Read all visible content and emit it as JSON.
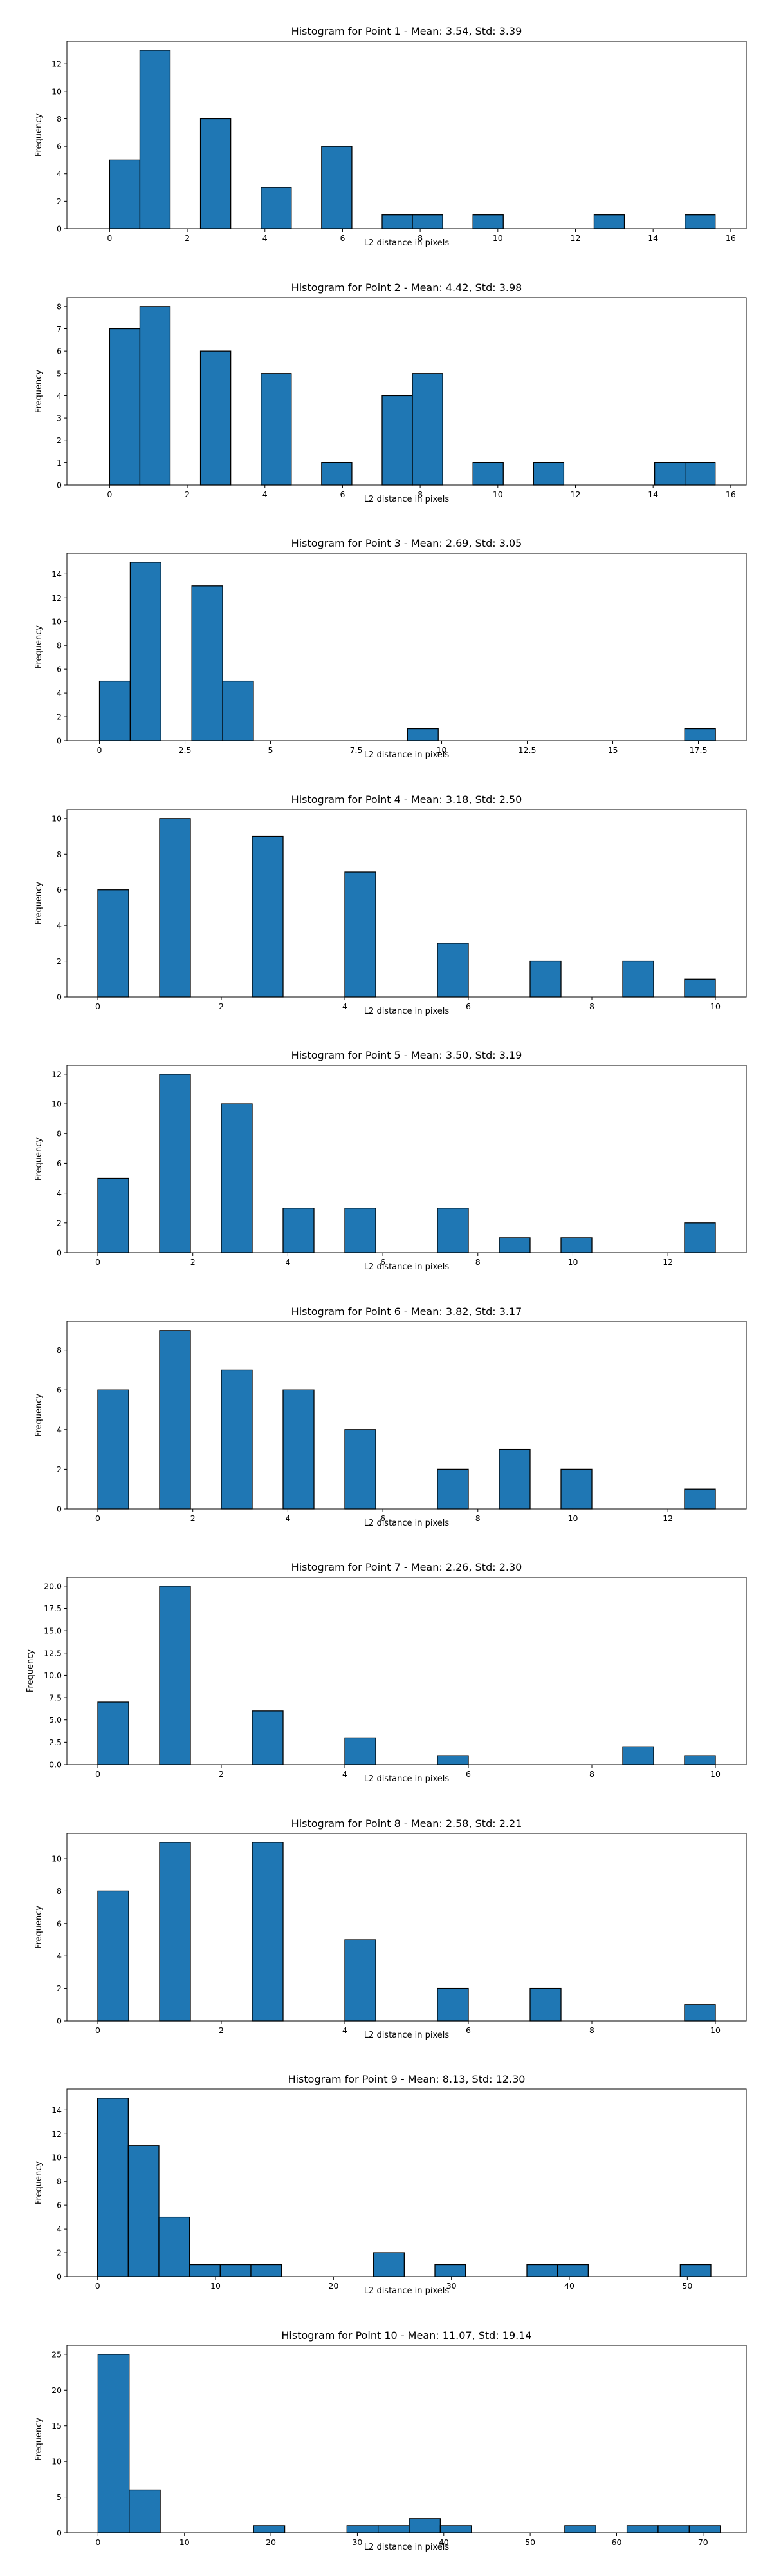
{
  "chart_data": [
    {
      "type": "bar",
      "title": "Histogram for Point 1 - Mean: 3.54, Std: 3.39",
      "xlabel": "L2 distance in pixels",
      "ylabel": "Frequency",
      "xlim": [
        -1.1,
        16.4
      ],
      "ylim": [
        0,
        13.65
      ],
      "xticks": [
        0,
        2,
        4,
        6,
        8,
        10,
        12,
        14,
        16
      ],
      "yticks": [
        0,
        2,
        4,
        6,
        8,
        10,
        12
      ],
      "bins": [
        {
          "x0": 0.0,
          "x1": 0.78,
          "count": 5
        },
        {
          "x0": 0.78,
          "x1": 1.56,
          "count": 13
        },
        {
          "x0": 2.34,
          "x1": 3.12,
          "count": 8
        },
        {
          "x0": 3.9,
          "x1": 4.68,
          "count": 3
        },
        {
          "x0": 5.46,
          "x1": 6.24,
          "count": 6
        },
        {
          "x0": 7.02,
          "x1": 7.8,
          "count": 1
        },
        {
          "x0": 7.8,
          "x1": 8.58,
          "count": 1
        },
        {
          "x0": 9.36,
          "x1": 10.14,
          "count": 1
        },
        {
          "x0": 12.48,
          "x1": 13.26,
          "count": 1
        },
        {
          "x0": 14.82,
          "x1": 15.6,
          "count": 1
        }
      ]
    },
    {
      "type": "bar",
      "title": "Histogram for Point 2 - Mean: 4.42, Std: 3.98",
      "xlabel": "L2 distance in pixels",
      "ylabel": "Frequency",
      "xlim": [
        -1.1,
        16.4
      ],
      "ylim": [
        0,
        8.4
      ],
      "xticks": [
        0,
        2,
        4,
        6,
        8,
        10,
        12,
        14,
        16
      ],
      "yticks": [
        0,
        1,
        2,
        3,
        4,
        5,
        6,
        7,
        8
      ],
      "bins": [
        {
          "x0": 0.0,
          "x1": 0.78,
          "count": 7
        },
        {
          "x0": 0.78,
          "x1": 1.56,
          "count": 8
        },
        {
          "x0": 2.34,
          "x1": 3.12,
          "count": 6
        },
        {
          "x0": 3.9,
          "x1": 4.68,
          "count": 5
        },
        {
          "x0": 5.46,
          "x1": 6.24,
          "count": 1
        },
        {
          "x0": 7.02,
          "x1": 7.8,
          "count": 4
        },
        {
          "x0": 7.8,
          "x1": 8.58,
          "count": 5
        },
        {
          "x0": 9.36,
          "x1": 10.14,
          "count": 1
        },
        {
          "x0": 10.92,
          "x1": 11.7,
          "count": 1
        },
        {
          "x0": 14.04,
          "x1": 14.82,
          "count": 1
        },
        {
          "x0": 14.82,
          "x1": 15.6,
          "count": 1
        }
      ]
    },
    {
      "type": "bar",
      "title": "Histogram for Point 3 - Mean: 2.69, Std: 3.05",
      "xlabel": "L2 distance in pixels",
      "ylabel": "Frequency",
      "xlim": [
        -0.95,
        18.9
      ],
      "ylim": [
        0,
        15.75
      ],
      "xticks": [
        0.0,
        2.5,
        5.0,
        7.5,
        10.0,
        12.5,
        15.0,
        17.5
      ],
      "yticks": [
        0,
        2,
        4,
        6,
        8,
        10,
        12,
        14
      ],
      "bins": [
        {
          "x0": 0.0,
          "x1": 0.9,
          "count": 5
        },
        {
          "x0": 0.9,
          "x1": 1.8,
          "count": 15
        },
        {
          "x0": 2.7,
          "x1": 3.6,
          "count": 13
        },
        {
          "x0": 3.6,
          "x1": 4.5,
          "count": 5
        },
        {
          "x0": 9.0,
          "x1": 9.9,
          "count": 1
        },
        {
          "x0": 17.1,
          "x1": 18.0,
          "count": 1
        }
      ]
    },
    {
      "type": "bar",
      "title": "Histogram for Point 4 - Mean: 3.18, Std: 2.50",
      "xlabel": "L2 distance in pixels",
      "ylabel": "Frequency",
      "xlim": [
        -0.5,
        10.5
      ],
      "ylim": [
        0,
        10.5
      ],
      "xticks": [
        0,
        2,
        4,
        6,
        8,
        10
      ],
      "yticks": [
        0,
        2,
        4,
        6,
        8,
        10
      ],
      "bins": [
        {
          "x0": 0.0,
          "x1": 0.5,
          "count": 6
        },
        {
          "x0": 1.0,
          "x1": 1.5,
          "count": 10
        },
        {
          "x0": 2.5,
          "x1": 3.0,
          "count": 9
        },
        {
          "x0": 4.0,
          "x1": 4.5,
          "count": 7
        },
        {
          "x0": 5.5,
          "x1": 6.0,
          "count": 3
        },
        {
          "x0": 7.0,
          "x1": 7.5,
          "count": 2
        },
        {
          "x0": 8.5,
          "x1": 9.0,
          "count": 2
        },
        {
          "x0": 9.5,
          "x1": 10.0,
          "count": 1
        }
      ]
    },
    {
      "type": "bar",
      "title": "Histogram for Point 5 - Mean: 3.50, Std: 3.19",
      "xlabel": "L2 distance in pixels",
      "ylabel": "Frequency",
      "xlim": [
        -0.65,
        13.65
      ],
      "ylim": [
        0,
        12.6
      ],
      "xticks": [
        0,
        2,
        4,
        6,
        8,
        10,
        12
      ],
      "yticks": [
        0,
        2,
        4,
        6,
        8,
        10,
        12
      ],
      "bins": [
        {
          "x0": 0.0,
          "x1": 0.65,
          "count": 5
        },
        {
          "x0": 1.3,
          "x1": 1.95,
          "count": 12
        },
        {
          "x0": 2.6,
          "x1": 3.25,
          "count": 10
        },
        {
          "x0": 3.9,
          "x1": 4.55,
          "count": 3
        },
        {
          "x0": 5.2,
          "x1": 5.85,
          "count": 3
        },
        {
          "x0": 7.15,
          "x1": 7.8,
          "count": 3
        },
        {
          "x0": 8.45,
          "x1": 9.1,
          "count": 1
        },
        {
          "x0": 9.75,
          "x1": 10.4,
          "count": 1
        },
        {
          "x0": 12.35,
          "x1": 13.0,
          "count": 2
        }
      ]
    },
    {
      "type": "bar",
      "title": "Histogram for Point 6 - Mean: 3.82, Std: 3.17",
      "xlabel": "L2 distance in pixels",
      "ylabel": "Frequency",
      "xlim": [
        -0.65,
        13.65
      ],
      "ylim": [
        0,
        9.45
      ],
      "xticks": [
        0,
        2,
        4,
        6,
        8,
        10,
        12
      ],
      "yticks": [
        0,
        2,
        4,
        6,
        8
      ],
      "bins": [
        {
          "x0": 0.0,
          "x1": 0.65,
          "count": 6
        },
        {
          "x0": 1.3,
          "x1": 1.95,
          "count": 9
        },
        {
          "x0": 2.6,
          "x1": 3.25,
          "count": 7
        },
        {
          "x0": 3.9,
          "x1": 4.55,
          "count": 6
        },
        {
          "x0": 5.2,
          "x1": 5.85,
          "count": 4
        },
        {
          "x0": 7.15,
          "x1": 7.8,
          "count": 2
        },
        {
          "x0": 8.45,
          "x1": 9.1,
          "count": 3
        },
        {
          "x0": 9.75,
          "x1": 10.4,
          "count": 2
        },
        {
          "x0": 12.35,
          "x1": 13.0,
          "count": 1
        }
      ]
    },
    {
      "type": "bar",
      "title": "Histogram for Point 7 - Mean: 2.26, Std: 2.30",
      "xlabel": "L2 distance in pixels",
      "ylabel": "Frequency",
      "xlim": [
        -0.5,
        10.5
      ],
      "ylim": [
        0,
        21
      ],
      "xticks": [
        0,
        2,
        4,
        6,
        8,
        10
      ],
      "yticks": [
        0.0,
        2.5,
        5.0,
        7.5,
        10.0,
        12.5,
        15.0,
        17.5,
        20.0
      ],
      "ytick_decimals": 1,
      "bins": [
        {
          "x0": 0.0,
          "x1": 0.5,
          "count": 7
        },
        {
          "x0": 1.0,
          "x1": 1.5,
          "count": 20
        },
        {
          "x0": 2.5,
          "x1": 3.0,
          "count": 6
        },
        {
          "x0": 4.0,
          "x1": 4.5,
          "count": 3
        },
        {
          "x0": 5.5,
          "x1": 6.0,
          "count": 1
        },
        {
          "x0": 8.5,
          "x1": 9.0,
          "count": 2
        },
        {
          "x0": 9.5,
          "x1": 10.0,
          "count": 1
        }
      ]
    },
    {
      "type": "bar",
      "title": "Histogram for Point 8 - Mean: 2.58, Std: 2.21",
      "xlabel": "L2 distance in pixels",
      "ylabel": "Frequency",
      "xlim": [
        -0.5,
        10.5
      ],
      "ylim": [
        0,
        11.55
      ],
      "xticks": [
        0,
        2,
        4,
        6,
        8,
        10
      ],
      "yticks": [
        0,
        2,
        4,
        6,
        8,
        10
      ],
      "bins": [
        {
          "x0": 0.0,
          "x1": 0.5,
          "count": 8
        },
        {
          "x0": 1.0,
          "x1": 1.5,
          "count": 11
        },
        {
          "x0": 2.5,
          "x1": 3.0,
          "count": 11
        },
        {
          "x0": 4.0,
          "x1": 4.5,
          "count": 5
        },
        {
          "x0": 5.5,
          "x1": 6.0,
          "count": 2
        },
        {
          "x0": 7.0,
          "x1": 7.5,
          "count": 2
        },
        {
          "x0": 9.5,
          "x1": 10.0,
          "count": 1
        }
      ]
    },
    {
      "type": "bar",
      "title": "Histogram for Point 9 - Mean: 8.13, Std: 12.30",
      "xlabel": "L2 distance in pixels",
      "ylabel": "Frequency",
      "xlim": [
        -2.6,
        55
      ],
      "ylim": [
        0,
        15.75
      ],
      "xticks": [
        0,
        10,
        20,
        30,
        40,
        50
      ],
      "yticks": [
        0,
        2,
        4,
        6,
        8,
        10,
        12,
        14
      ],
      "bins": [
        {
          "x0": 0.0,
          "x1": 2.6,
          "count": 15
        },
        {
          "x0": 2.6,
          "x1": 5.2,
          "count": 11
        },
        {
          "x0": 5.2,
          "x1": 7.8,
          "count": 5
        },
        {
          "x0": 7.8,
          "x1": 10.4,
          "count": 1
        },
        {
          "x0": 10.4,
          "x1": 13.0,
          "count": 1
        },
        {
          "x0": 13.0,
          "x1": 15.6,
          "count": 1
        },
        {
          "x0": 23.4,
          "x1": 26.0,
          "count": 2
        },
        {
          "x0": 28.6,
          "x1": 31.2,
          "count": 1
        },
        {
          "x0": 36.4,
          "x1": 39.0,
          "count": 1
        },
        {
          "x0": 39.0,
          "x1": 41.6,
          "count": 1
        },
        {
          "x0": 49.4,
          "x1": 52.0,
          "count": 1
        }
      ]
    },
    {
      "type": "bar",
      "title": "Histogram for Point 10 - Mean: 11.07, Std: 19.14",
      "xlabel": "L2 distance in pixels",
      "ylabel": "Frequency",
      "xlim": [
        -3.6,
        75
      ],
      "ylim": [
        0,
        26.25
      ],
      "xticks": [
        0,
        10,
        20,
        30,
        40,
        50,
        60,
        70
      ],
      "yticks": [
        0,
        5,
        10,
        15,
        20,
        25
      ],
      "bins": [
        {
          "x0": 0.0,
          "x1": 3.6,
          "count": 25
        },
        {
          "x0": 3.6,
          "x1": 7.2,
          "count": 6
        },
        {
          "x0": 18.0,
          "x1": 21.6,
          "count": 1
        },
        {
          "x0": 28.8,
          "x1": 32.4,
          "count": 1
        },
        {
          "x0": 32.4,
          "x1": 36.0,
          "count": 1
        },
        {
          "x0": 36.0,
          "x1": 39.6,
          "count": 2
        },
        {
          "x0": 39.6,
          "x1": 43.2,
          "count": 1
        },
        {
          "x0": 54.0,
          "x1": 57.6,
          "count": 1
        },
        {
          "x0": 61.2,
          "x1": 64.8,
          "count": 1
        },
        {
          "x0": 64.8,
          "x1": 68.4,
          "count": 1
        },
        {
          "x0": 68.4,
          "x1": 72.0,
          "count": 1
        }
      ]
    }
  ]
}
